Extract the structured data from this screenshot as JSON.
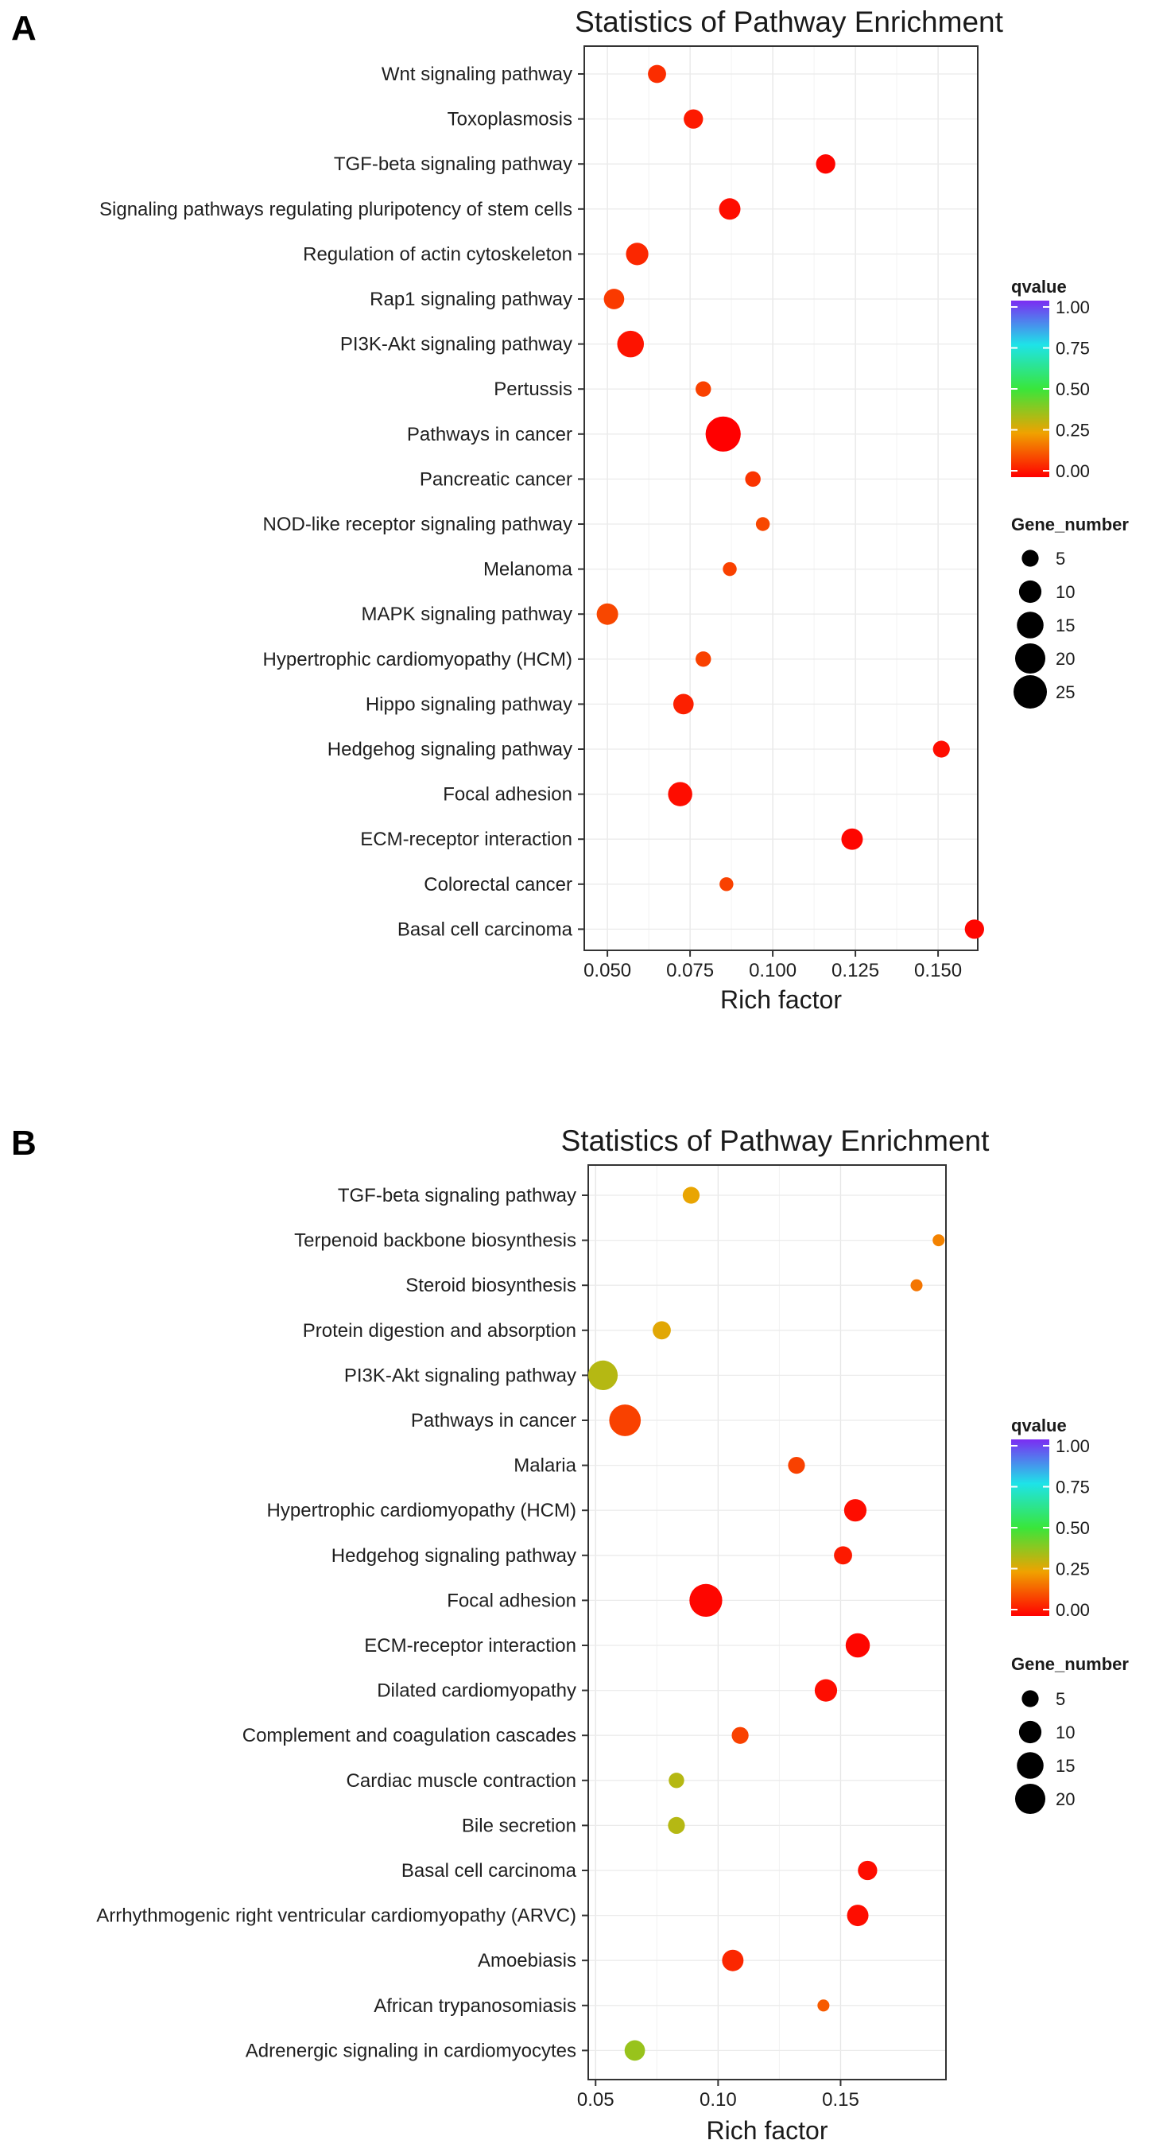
{
  "chart_data": [
    {
      "panel_label": "A",
      "type": "scatter",
      "title": "Statistics of Pathway Enrichment",
      "xlabel": "Rich factor",
      "ylabel": "",
      "xlim": [
        0.043,
        0.162
      ],
      "xticks": [
        0.05,
        0.075,
        0.1,
        0.125,
        0.15
      ],
      "xtick_labels": [
        "0.050",
        "0.075",
        "0.100",
        "0.125",
        "0.150"
      ],
      "grid": true,
      "color_legend": {
        "title": "qvalue",
        "ticks": [
          "1.00",
          "0.75",
          "0.50",
          "0.25",
          "0.00"
        ],
        "colors": [
          "#7b2cf2",
          "#1ee3e8",
          "#39e63b",
          "#f0a200",
          "#ff0000"
        ]
      },
      "size_legend": {
        "title": "Gene_number",
        "values": [
          5,
          10,
          15,
          20,
          25
        ],
        "labels": [
          "5",
          "10",
          "15",
          "20",
          "25"
        ]
      },
      "points": [
        {
          "pathway": "Wnt signaling pathway",
          "rich_factor": 0.065,
          "gene_number": 6,
          "qvalue": 0.07
        },
        {
          "pathway": "Toxoplasmosis",
          "rich_factor": 0.076,
          "gene_number": 7,
          "qvalue": 0.04
        },
        {
          "pathway": "TGF-beta signaling pathway",
          "rich_factor": 0.116,
          "gene_number": 7,
          "qvalue": 0.01
        },
        {
          "pathway": "Signaling pathways regulating pluripotency of stem cells",
          "rich_factor": 0.087,
          "gene_number": 9,
          "qvalue": 0.02
        },
        {
          "pathway": "Regulation of actin cytoskeleton",
          "rich_factor": 0.059,
          "gene_number": 10,
          "qvalue": 0.06
        },
        {
          "pathway": "Rap1 signaling pathway",
          "rich_factor": 0.052,
          "gene_number": 8,
          "qvalue": 0.09
        },
        {
          "pathway": "PI3K-Akt signaling pathway",
          "rich_factor": 0.057,
          "gene_number": 15,
          "qvalue": 0.03
        },
        {
          "pathway": "Pertussis",
          "rich_factor": 0.079,
          "gene_number": 4,
          "qvalue": 0.1
        },
        {
          "pathway": "Pathways in cancer",
          "rich_factor": 0.085,
          "gene_number": 28,
          "qvalue": 0.0
        },
        {
          "pathway": "Pancreatic cancer",
          "rich_factor": 0.094,
          "gene_number": 4,
          "qvalue": 0.08
        },
        {
          "pathway": "NOD-like receptor signaling pathway",
          "rich_factor": 0.097,
          "gene_number": 3,
          "qvalue": 0.11
        },
        {
          "pathway": "Melanoma",
          "rich_factor": 0.087,
          "gene_number": 3,
          "qvalue": 0.1
        },
        {
          "pathway": "MAPK signaling pathway",
          "rich_factor": 0.05,
          "gene_number": 9,
          "qvalue": 0.11
        },
        {
          "pathway": "Hypertrophic cardiomyopathy (HCM)",
          "rich_factor": 0.079,
          "gene_number": 4,
          "qvalue": 0.1
        },
        {
          "pathway": "Hippo signaling pathway",
          "rich_factor": 0.073,
          "gene_number": 8,
          "qvalue": 0.05
        },
        {
          "pathway": "Hedgehog signaling pathway",
          "rich_factor": 0.151,
          "gene_number": 5,
          "qvalue": 0.02
        },
        {
          "pathway": "Focal adhesion",
          "rich_factor": 0.072,
          "gene_number": 12,
          "qvalue": 0.02
        },
        {
          "pathway": "ECM-receptor interaction",
          "rich_factor": 0.124,
          "gene_number": 9,
          "qvalue": 0.01
        },
        {
          "pathway": "Colorectal cancer",
          "rich_factor": 0.086,
          "gene_number": 3,
          "qvalue": 0.1
        },
        {
          "pathway": "Basal cell carcinoma",
          "rich_factor": 0.161,
          "gene_number": 7,
          "qvalue": 0.01
        }
      ]
    },
    {
      "panel_label": "B",
      "type": "scatter",
      "title": "Statistics of Pathway Enrichment",
      "xlabel": "Rich factor",
      "ylabel": "",
      "xlim": [
        0.047,
        0.193
      ],
      "xticks": [
        0.05,
        0.1,
        0.15
      ],
      "xtick_labels": [
        "0.05",
        "0.10",
        "0.15"
      ],
      "grid": true,
      "color_legend": {
        "title": "qvalue",
        "ticks": [
          "1.00",
          "0.75",
          "0.50",
          "0.25",
          "0.00"
        ],
        "colors": [
          "#7b2cf2",
          "#1ee3e8",
          "#39e63b",
          "#f0a200",
          "#ff0000"
        ]
      },
      "size_legend": {
        "title": "Gene_number",
        "values": [
          5,
          10,
          15,
          20
        ],
        "labels": [
          "5",
          "10",
          "15",
          "20"
        ]
      },
      "points": [
        {
          "pathway": "TGF-beta signaling pathway",
          "rich_factor": 0.089,
          "gene_number": 5,
          "qvalue": 0.26
        },
        {
          "pathway": "Terpenoid backbone biosynthesis",
          "rich_factor": 0.19,
          "gene_number": 2,
          "qvalue": 0.2
        },
        {
          "pathway": "Steroid biosynthesis",
          "rich_factor": 0.181,
          "gene_number": 2,
          "qvalue": 0.18
        },
        {
          "pathway": "Protein digestion and absorption",
          "rich_factor": 0.077,
          "gene_number": 6,
          "qvalue": 0.27
        },
        {
          "pathway": "PI3K-Akt signaling pathway",
          "rich_factor": 0.053,
          "gene_number": 19,
          "qvalue": 0.33
        },
        {
          "pathway": "Pathways in cancer",
          "rich_factor": 0.062,
          "gene_number": 22,
          "qvalue": 0.1
        },
        {
          "pathway": "Malaria",
          "rich_factor": 0.132,
          "gene_number": 5,
          "qvalue": 0.1
        },
        {
          "pathway": "Hypertrophic cardiomyopathy (HCM)",
          "rich_factor": 0.156,
          "gene_number": 10,
          "qvalue": 0.02
        },
        {
          "pathway": "Hedgehog signaling pathway",
          "rich_factor": 0.151,
          "gene_number": 6,
          "qvalue": 0.04
        },
        {
          "pathway": "Focal adhesion",
          "rich_factor": 0.095,
          "gene_number": 24,
          "qvalue": 0.01
        },
        {
          "pathway": "ECM-receptor interaction",
          "rich_factor": 0.157,
          "gene_number": 12,
          "qvalue": 0.01
        },
        {
          "pathway": "Dilated cardiomyopathy",
          "rich_factor": 0.144,
          "gene_number": 10,
          "qvalue": 0.02
        },
        {
          "pathway": "Complement and coagulation cascades",
          "rich_factor": 0.109,
          "gene_number": 5,
          "qvalue": 0.1
        },
        {
          "pathway": "Cardiac muscle contraction",
          "rich_factor": 0.083,
          "gene_number": 4,
          "qvalue": 0.33
        },
        {
          "pathway": "Bile secretion",
          "rich_factor": 0.083,
          "gene_number": 5,
          "qvalue": 0.33
        },
        {
          "pathway": "Basal cell carcinoma",
          "rich_factor": 0.161,
          "gene_number": 7,
          "qvalue": 0.02
        },
        {
          "pathway": "Arrhythmogenic right ventricular cardiomyopathy (ARVC)",
          "rich_factor": 0.157,
          "gene_number": 9,
          "qvalue": 0.02
        },
        {
          "pathway": "Amoebiasis",
          "rich_factor": 0.106,
          "gene_number": 9,
          "qvalue": 0.06
        },
        {
          "pathway": "African trypanosomiasis",
          "rich_factor": 0.143,
          "gene_number": 2,
          "qvalue": 0.14
        },
        {
          "pathway": "Adrenergic signaling in cardiomyocytes",
          "rich_factor": 0.066,
          "gene_number": 8,
          "qvalue": 0.37
        }
      ]
    }
  ]
}
